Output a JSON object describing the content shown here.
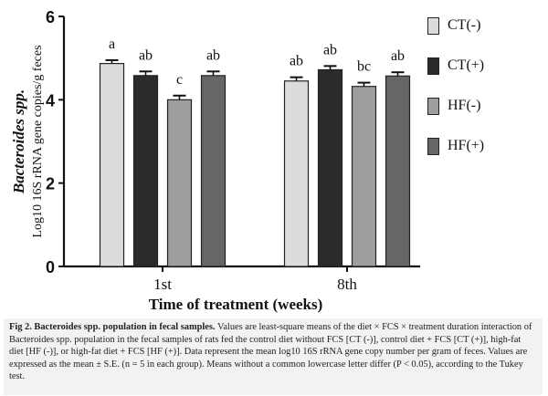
{
  "chart_data": {
    "type": "bar",
    "categories": [
      "1st",
      "8th"
    ],
    "series": [
      {
        "name": "CT(-)",
        "color": "#dcdcdc",
        "values": [
          4.87,
          4.45
        ],
        "errors": [
          0.08,
          0.09
        ],
        "letters": [
          "a",
          "ab"
        ]
      },
      {
        "name": "CT(+)",
        "color": "#2b2b2b",
        "values": [
          4.58,
          4.72
        ],
        "errors": [
          0.1,
          0.09
        ],
        "letters": [
          "ab",
          "ab"
        ]
      },
      {
        "name": "HF(-)",
        "color": "#9e9e9e",
        "values": [
          4.0,
          4.32
        ],
        "errors": [
          0.1,
          0.09
        ],
        "letters": [
          "c",
          "bc"
        ]
      },
      {
        "name": "HF(+)",
        "color": "#666666",
        "values": [
          4.58,
          4.57
        ],
        "errors": [
          0.1,
          0.09
        ],
        "letters": [
          "ab",
          "ab"
        ]
      }
    ],
    "ylim": [
      0,
      6
    ],
    "yticks": [
      "0",
      "2",
      "4",
      "6"
    ],
    "ylabel_italic": "Bacteroides spp.",
    "ylabel": "Log10 16S rRNA gene copies/g feces",
    "xlabel": "Time of treatment (weeks)",
    "legend_position": "right"
  },
  "caption": {
    "title": "Fig 2. Bacteroides spp. population in fecal samples.",
    "text": "Values are least-square means of the diet × FCS × treatment duration interaction of Bacteroides spp. population in the fecal samples of rats fed the control diet without FCS [CT (-)], control diet + FCS [CT (+)], high-fat diet [HF (-)], or high-fat diet + FCS [HF (+)]. Data represent the mean log10 16S rRNA gene copy number per gram of feces. Values are expressed as the mean ± S.E. (n = 5 in each group). Means without a common lowercase letter differ (P < 0.05), according to the Tukey test."
  }
}
